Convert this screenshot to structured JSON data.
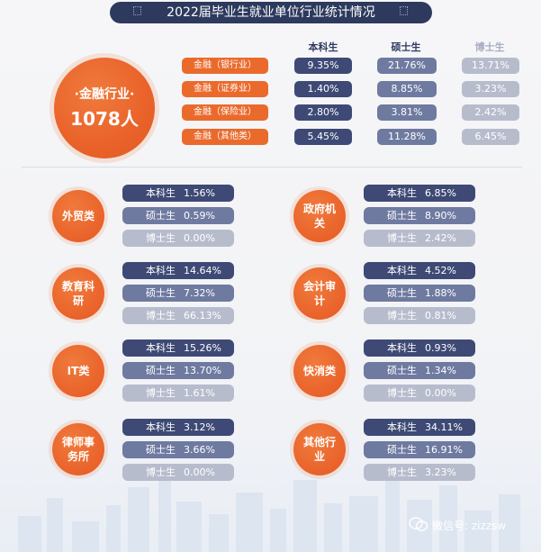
{
  "header": {
    "title": "2022届毕业生就业单位行业统计情况"
  },
  "columns": {
    "bachelor": "本科生",
    "master": "硕士生",
    "phd": "博士生"
  },
  "finance": {
    "label_line1": "·金融行业·",
    "label_line2": "1078人",
    "rows": [
      {
        "label": "金融（银行业）",
        "bachelor": "9.35%",
        "master": "21.76%",
        "phd": "13.71%"
      },
      {
        "label": "金融（证券业）",
        "bachelor": "1.40%",
        "master": "8.85%",
        "phd": "3.23%"
      },
      {
        "label": "金融（保险业）",
        "bachelor": "2.80%",
        "master": "3.81%",
        "phd": "2.42%"
      },
      {
        "label": "金融（其他类）",
        "bachelor": "5.45%",
        "master": "11.28%",
        "phd": "6.45%"
      }
    ]
  },
  "categories": [
    {
      "name": "外贸类",
      "stats": [
        {
          "label": "本科生",
          "value": "1.56%"
        },
        {
          "label": "硕士生",
          "value": "0.59%"
        },
        {
          "label": "博士生",
          "value": "0.00%"
        }
      ]
    },
    {
      "name": "政府机关",
      "stats": [
        {
          "label": "本科生",
          "value": "6.85%"
        },
        {
          "label": "硕士生",
          "value": "8.90%"
        },
        {
          "label": "博士生",
          "value": "2.42%"
        }
      ]
    },
    {
      "name": "教育科研",
      "stats": [
        {
          "label": "本科生",
          "value": "14.64%"
        },
        {
          "label": "硕士生",
          "value": "7.32%"
        },
        {
          "label": "博士生",
          "value": "66.13%"
        }
      ]
    },
    {
      "name": "会计审计",
      "stats": [
        {
          "label": "本科生",
          "value": "4.52%"
        },
        {
          "label": "硕士生",
          "value": "1.88%"
        },
        {
          "label": "博士生",
          "value": "0.81%"
        }
      ]
    },
    {
      "name": "IT类",
      "stats": [
        {
          "label": "本科生",
          "value": "15.26%"
        },
        {
          "label": "硕士生",
          "value": "13.70%"
        },
        {
          "label": "博士生",
          "value": "1.61%"
        }
      ]
    },
    {
      "name": "快消类",
      "stats": [
        {
          "label": "本科生",
          "value": "0.93%"
        },
        {
          "label": "硕士生",
          "value": "1.34%"
        },
        {
          "label": "博士生",
          "value": "0.00%"
        }
      ]
    },
    {
      "name": "律师事务所",
      "stats": [
        {
          "label": "本科生",
          "value": "3.12%"
        },
        {
          "label": "硕士生",
          "value": "3.66%"
        },
        {
          "label": "博士生",
          "value": "0.00%"
        }
      ]
    },
    {
      "name": "其他行业",
      "stats": [
        {
          "label": "本科生",
          "value": "34.11%"
        },
        {
          "label": "硕士生",
          "value": "16.91%"
        },
        {
          "label": "博士生",
          "value": "3.23%"
        }
      ]
    }
  ],
  "watermark": {
    "text": "微信号: zizzsw"
  },
  "colors": {
    "orange": "#e9622a",
    "navy": "#2d3a5e",
    "dark_pill": "#3e4a75",
    "mid_pill": "#6f7aa0",
    "light_pill": "#b7bccd"
  }
}
